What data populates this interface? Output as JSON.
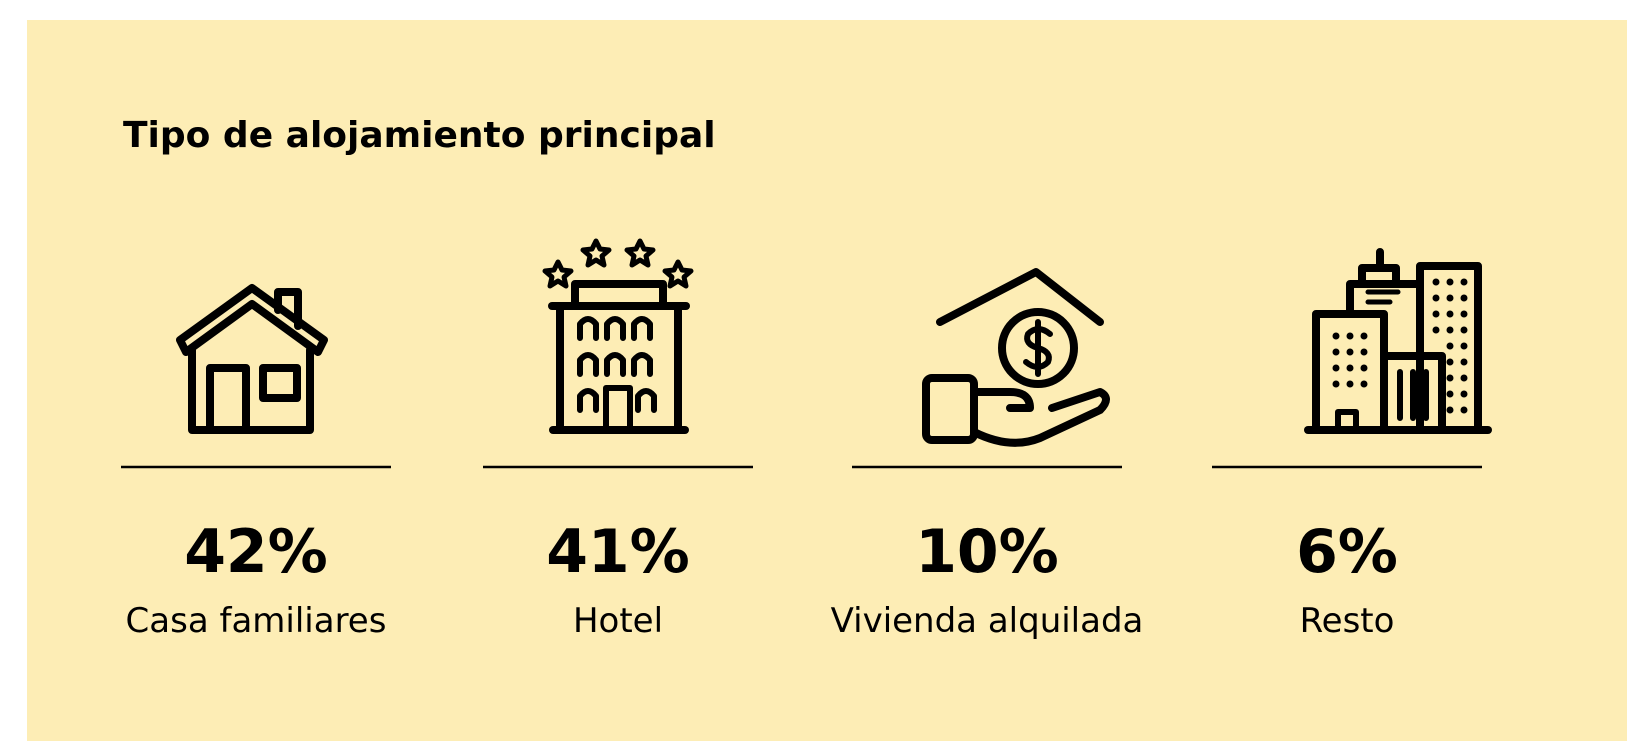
{
  "header": {
    "title": "Tipo de alojamiento principal"
  },
  "items": [
    {
      "value": "42%",
      "label": "Casa familiares"
    },
    {
      "value": "41%",
      "label": "Hotel"
    },
    {
      "value": "10%",
      "label": "Vivienda alquilada"
    },
    {
      "value": "6%",
      "label": "Resto"
    }
  ]
}
